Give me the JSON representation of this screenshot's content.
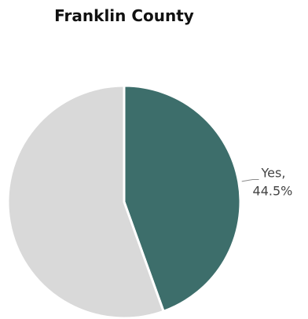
{
  "chart_data": {
    "type": "pie",
    "title": "Franklin County",
    "slices": [
      {
        "label": "Yes",
        "value": 44.5,
        "display": "44.5%",
        "color": "#3d6e6b",
        "labeled": true
      },
      {
        "label": "",
        "value": 55.5,
        "display": "",
        "color": "#d9d9d9",
        "labeled": false
      }
    ],
    "start_angle": "12 o'clock",
    "direction": "clockwise",
    "legend": "none"
  }
}
